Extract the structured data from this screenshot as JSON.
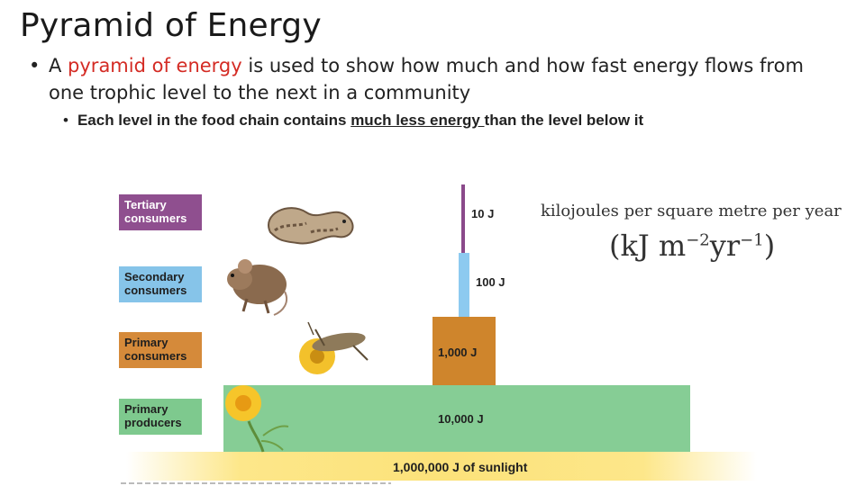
{
  "title": "Pyramid of Energy",
  "bullet1": {
    "prefix": "A ",
    "highlight": "pyramid of energy",
    "suffix": " is used to show how much and how fast energy flows from one trophic level to the next in a community"
  },
  "bullet2": {
    "prefix": "Each level in the food chain contains ",
    "underlined": "much less energy ",
    "suffix": "than the level below it"
  },
  "levels": [
    {
      "label": "Tertiary consumers",
      "value": "10 J",
      "color": "#8f4f8f"
    },
    {
      "label": "Secondary consumers",
      "value": "100 J",
      "color": "#86c4e9"
    },
    {
      "label": "Primary consumers",
      "value": "1,000 J",
      "color": "#d58a3a"
    },
    {
      "label": "Primary producers",
      "value": "10,000 J",
      "color": "#7ec98e"
    }
  ],
  "sunlight": "1,000,000 J of sunlight",
  "units": {
    "line1": "kilojoules per square metre per year",
    "line2_pre": "(kJ m",
    "line2_exp1": "−2",
    "line2_mid": "yr",
    "line2_exp2": "−1",
    "line2_post": ")"
  },
  "icons": [
    "snake-icon",
    "mouse-icon",
    "grasshopper-icon",
    "flower-icon"
  ],
  "accent_color": "#d42b24"
}
